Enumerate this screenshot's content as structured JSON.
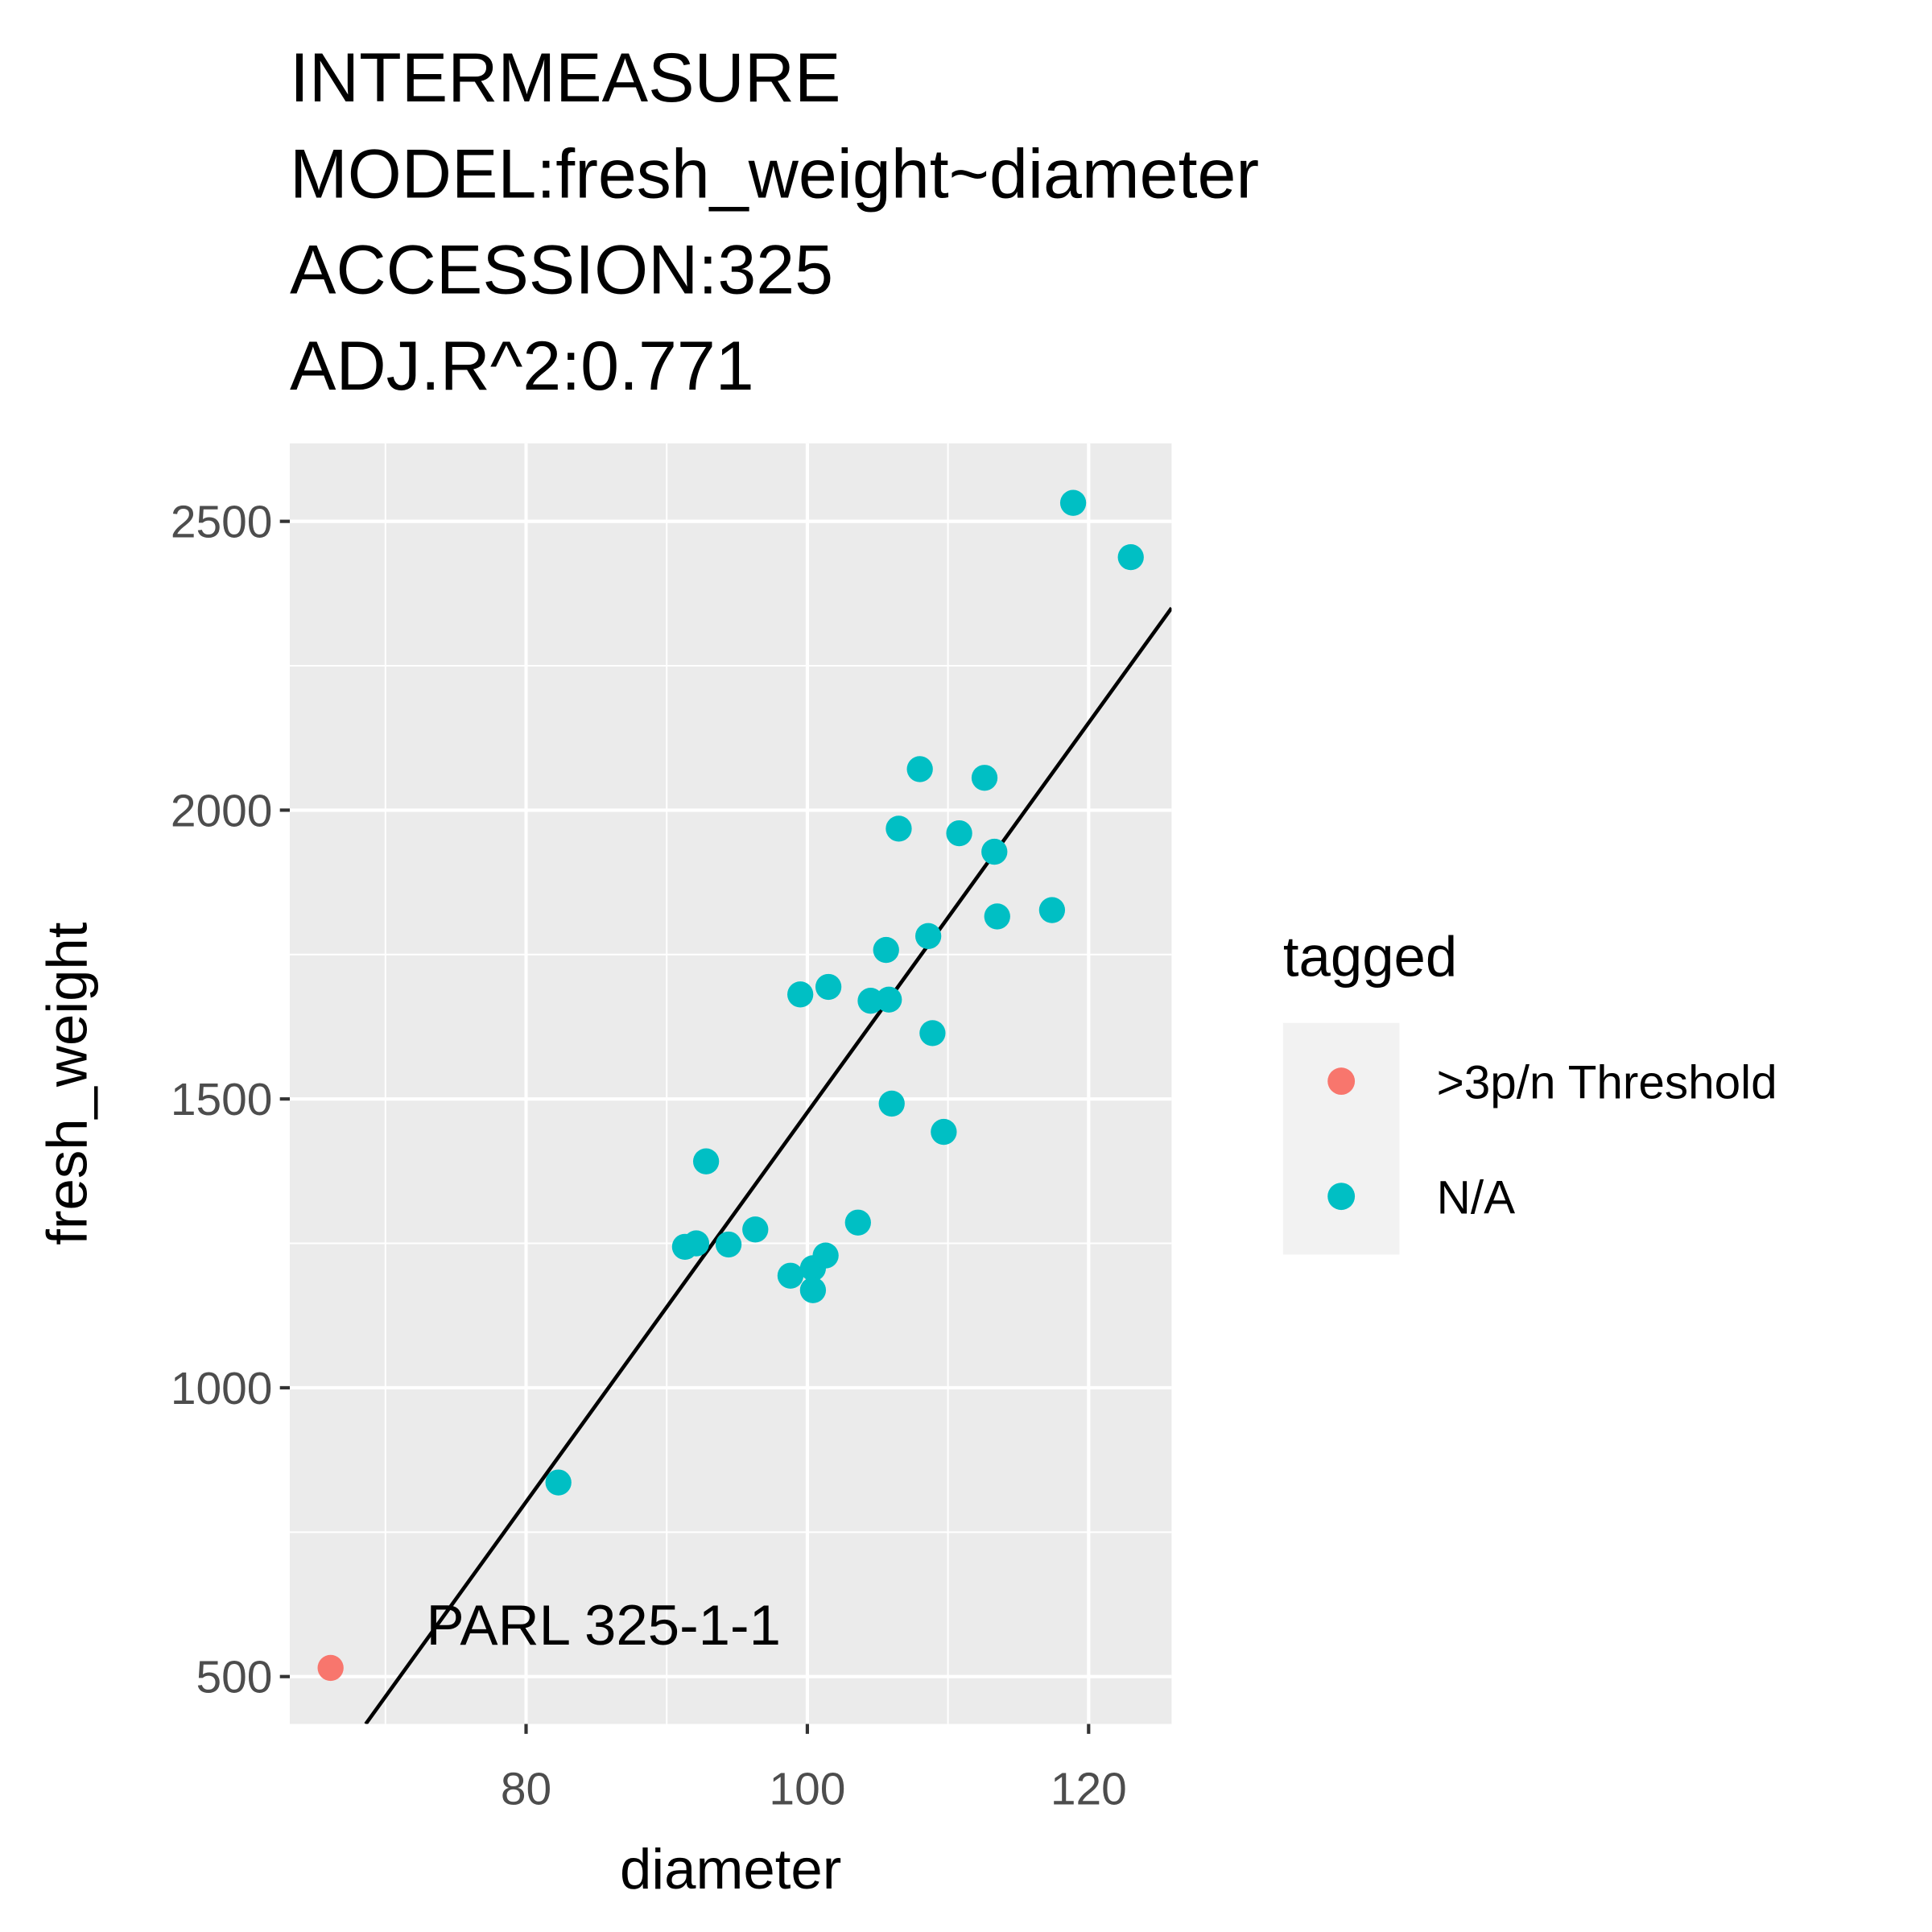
{
  "chart_data": {
    "type": "scatter",
    "title": [
      "INTERMEASURE",
      "MODEL:fresh_weight~diameter",
      "ACCESSION:325",
      "ADJ.R^2:0.771"
    ],
    "x_label": "diameter",
    "y_label": "fresh_weight",
    "xlim": [
      63.2,
      125.9
    ],
    "xticks": [
      80,
      100,
      120
    ],
    "ylim": [
      418,
      2635
    ],
    "yticks": [
      500,
      1000,
      1500,
      2000,
      2500
    ],
    "grid": true,
    "legend_title": "tagged",
    "legend_position": "right",
    "series": [
      {
        "name": ">3p/n Threshold",
        "color": "#F8766D",
        "x": [
          66.1
        ],
        "values": [
          515
        ]
      },
      {
        "name": "N/A",
        "color": "#00BFC4",
        "x": [
          118.9,
          123.0,
          108.0,
          112.6,
          106.5,
          110.8,
          113.3,
          117.4,
          113.5,
          108.6,
          105.6,
          101.5,
          99.5,
          104.5,
          105.8,
          108.9,
          106.0,
          109.7,
          92.8,
          96.3,
          103.6,
          91.3,
          92.1,
          94.4,
          98.8,
          100.4,
          101.3,
          100.4,
          82.3
        ],
        "values": [
          2532,
          2438,
          2071,
          2056,
          1968,
          1960,
          1928,
          1827,
          1816,
          1782,
          1758,
          1694,
          1681,
          1670,
          1672,
          1614,
          1492,
          1443,
          1392,
          1274,
          1286,
          1244,
          1250,
          1248,
          1194,
          1207,
          1229,
          1169,
          836
        ]
      }
    ],
    "fit_line": {
      "color": "#000000",
      "x": [
        68.6,
        125.9
      ],
      "values": [
        418,
        2350
      ]
    },
    "annotation": {
      "text": "PARL 325-1-1",
      "x": 72.9,
      "y": 555
    }
  }
}
